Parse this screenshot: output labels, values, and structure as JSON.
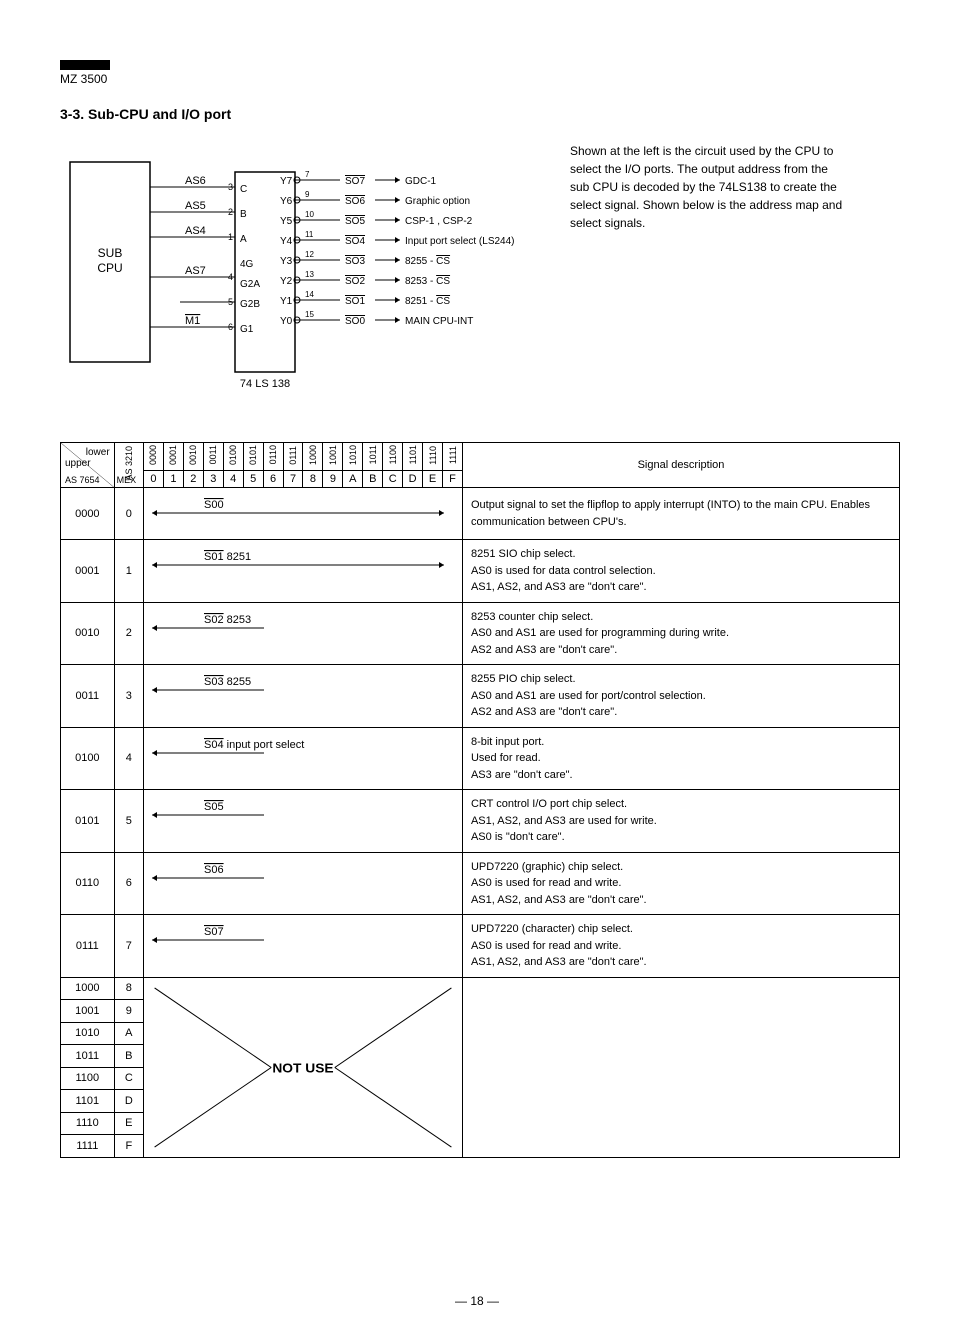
{
  "header": {
    "model": "MZ 3500",
    "section": "3-3. Sub-CPU and I/O port"
  },
  "diagram": {
    "sub_label": "SUB\nCPU",
    "as_lines": [
      "AS6",
      "AS5",
      "AS4",
      "AS7",
      "M1"
    ],
    "as_pins": [
      "3",
      "2",
      "1",
      "4",
      "5",
      "6"
    ],
    "mux_labels": [
      "C",
      "B",
      "A",
      "4G",
      "G2A",
      "G2B",
      "G1"
    ],
    "decoder_label": "74 LS 138",
    "y_labels": [
      "Y7",
      "Y6",
      "Y5",
      "Y4",
      "Y3",
      "Y2",
      "Y1",
      "Y0"
    ],
    "y_pins": [
      "7",
      "9",
      "10",
      "11",
      "12",
      "13",
      "14",
      "15"
    ],
    "so_labels": [
      "SO7",
      "SO6",
      "SO5",
      "SO4",
      "SO3",
      "SO2",
      "SO1",
      "SO0"
    ],
    "outputs": [
      "GDC-1",
      "Graphic option",
      "CSP-1 , CSP-2",
      "Input port select (LS244)",
      "8255 - CS",
      "8253 - CS",
      "8251 - CS",
      "MAIN CPU-INT"
    ]
  },
  "top_text": "Shown at the left is the circuit used by the CPU to select the I/O ports. The output address from the sub CPU is decoded by the 74LS138 to create the select signal. Shown below is the address map and select signals.",
  "table": {
    "header_upper": "upper",
    "header_lower": "lower",
    "header_as3210": "AS 3210",
    "header_as7654": "AS 7654",
    "header_mex": "MEX",
    "header_signal": "Signal description",
    "bit_labels_top": [
      "0000",
      "0001",
      "0010",
      "0011",
      "0100",
      "0101",
      "0110",
      "0111",
      "1000",
      "1001",
      "1010",
      "1011",
      "1100",
      "1101",
      "1110",
      "1111"
    ],
    "hex_labels": [
      "0",
      "1",
      "2",
      "3",
      "4",
      "5",
      "6",
      "7",
      "8",
      "9",
      "A",
      "B",
      "C",
      "D",
      "E",
      "F"
    ],
    "rows": [
      {
        "upper": "0000",
        "mex": "0",
        "signal": "S00",
        "desc": "Output signal to set the flipflop to apply interrupt (INTO) to the main CPU. Enables communication between CPU's."
      },
      {
        "upper": "0001",
        "mex": "1",
        "signal": "S01 8251",
        "desc": "8251 SIO chip select.\nAS0 is used for data control selection.\nAS1, AS2, and AS3 are \"don't care\"."
      },
      {
        "upper": "0010",
        "mex": "2",
        "signal": "S02 8253",
        "desc": "8253 counter chip select.\nAS0 and AS1 are used for programming during write.\nAS2 and AS3 are \"don't care\"."
      },
      {
        "upper": "0011",
        "mex": "3",
        "signal": "S03 8255",
        "desc": "8255 PIO chip select.\nAS0 and AS1 are used for port/control selection.\nAS2 and AS3 are \"don't care\"."
      },
      {
        "upper": "0100",
        "mex": "4",
        "signal": "S04 input port select",
        "desc": "8-bit input port.\nUsed for read.\nAS3 are \"don't care\"."
      },
      {
        "upper": "0101",
        "mex": "5",
        "signal": "S05",
        "desc": "CRT control I/O port chip select.\nAS1, AS2, and AS3 are used for write.\nAS0 is \"don't care\"."
      },
      {
        "upper": "0110",
        "mex": "6",
        "signal": "S06",
        "desc": "UPD7220 (graphic) chip select.\nAS0 is used for read and write.\nAS1, AS2, and AS3 are \"don't care\"."
      },
      {
        "upper": "0111",
        "mex": "7",
        "signal": "S07",
        "desc": "UPD7220 (character) chip select.\nAS0 is used for read and write.\nAS1, AS2, and AS3 are \"don't care\"."
      }
    ],
    "notuse_rows": [
      {
        "upper": "1000",
        "mex": "8"
      },
      {
        "upper": "1001",
        "mex": "9"
      },
      {
        "upper": "1010",
        "mex": "A"
      },
      {
        "upper": "1011",
        "mex": "B"
      },
      {
        "upper": "1100",
        "mex": "C"
      },
      {
        "upper": "1101",
        "mex": "D"
      },
      {
        "upper": "1110",
        "mex": "E"
      },
      {
        "upper": "1111",
        "mex": "F"
      }
    ],
    "notuse_label": "NOT USE"
  },
  "page_num": "— 18 —"
}
